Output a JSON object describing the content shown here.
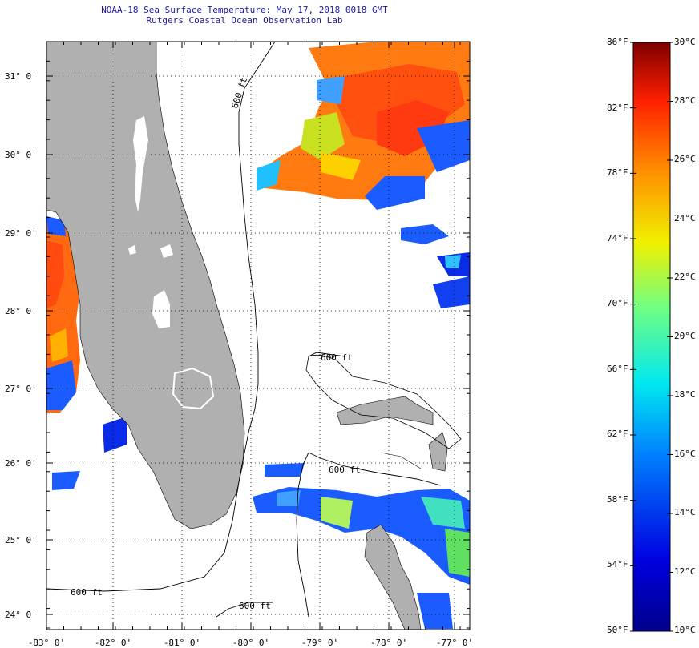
{
  "title": {
    "line1": "NOAA-18 Sea Surface Temperature:  May 17, 2018 0018 GMT",
    "line2": "Rutgers Coastal Ocean Observation Lab"
  },
  "map": {
    "lon_labels": [
      "-83° 0'",
      "-82° 0'",
      "-81° 0'",
      "-80° 0'",
      "-79° 0'",
      "-78° 0'",
      "-77° 0'"
    ],
    "lat_labels": [
      "31° 0'",
      "30° 0'",
      "29° 0'",
      "28° 0'",
      "27° 0'",
      "26° 0'",
      "25° 0'",
      "24° 0'"
    ],
    "contour_labels": [
      "600 ft",
      "600 ft",
      "600 ft",
      "600 ft",
      "600 ft"
    ],
    "colors": {
      "land": "#b0b0b0",
      "no_data": "#ffffff",
      "grid": "#000000"
    }
  },
  "colorbar": {
    "fahrenheit": [
      "86°F",
      "82°F",
      "78°F",
      "74°F",
      "70°F",
      "66°F",
      "62°F",
      "58°F",
      "54°F",
      "50°F"
    ],
    "celsius": [
      "30°C",
      "28°C",
      "26°C",
      "24°C",
      "22°C",
      "20°C",
      "18°C",
      "16°C",
      "14°C",
      "12°C",
      "10°C"
    ],
    "range_celsius": [
      10,
      30
    ]
  }
}
